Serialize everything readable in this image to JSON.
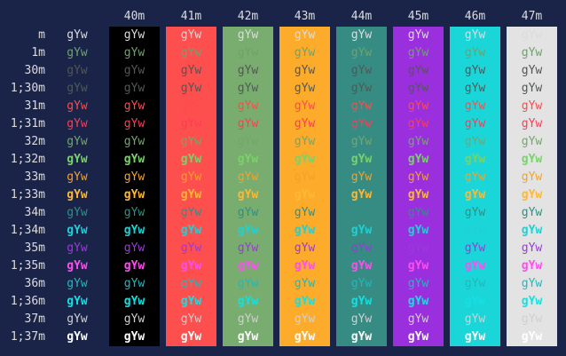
{
  "sample_text": "gYw",
  "columns": [
    {
      "label": "40m",
      "bg": "#000000"
    },
    {
      "label": "41m",
      "bg": "#fe4f4f"
    },
    {
      "label": "42m",
      "bg": "#79ad6f"
    },
    {
      "label": "43m",
      "bg": "#fdab2b"
    },
    {
      "label": "44m",
      "bg": "#368c83"
    },
    {
      "label": "45m",
      "bg": "#9a30dd"
    },
    {
      "label": "46m",
      "bg": "#1bd6d8"
    },
    {
      "label": "47m",
      "bg": "#e3e3e3"
    }
  ],
  "rows": [
    {
      "label": "m",
      "fg": "#dcdcdc",
      "bold": false
    },
    {
      "label": "1m",
      "fg": "#6ea26c",
      "bold": false
    },
    {
      "label": "30m",
      "fg": "#555555",
      "bold": false
    },
    {
      "label": "1;30m",
      "fg": "#4f5a55",
      "bold": false
    },
    {
      "label": "31m",
      "fg": "#fe4b4b",
      "bold": false
    },
    {
      "label": "1;31m",
      "fg": "#ff3b55",
      "bold": false
    },
    {
      "label": "32m",
      "fg": "#74a66c",
      "bold": false
    },
    {
      "label": "1;32m",
      "fg": "#79d26a",
      "bold": true
    },
    {
      "label": "33m",
      "fg": "#f2a22a",
      "bold": false
    },
    {
      "label": "1;33m",
      "fg": "#ffb833",
      "bold": true
    },
    {
      "label": "34m",
      "fg": "#2f8f86",
      "bold": false
    },
    {
      "label": "1;34m",
      "fg": "#1fd0d4",
      "bold": true
    },
    {
      "label": "35m",
      "fg": "#9b3ad8",
      "bold": false
    },
    {
      "label": "1;35m",
      "fg": "#ff4df0",
      "bold": true
    },
    {
      "label": "36m",
      "fg": "#21b8ba",
      "bold": false
    },
    {
      "label": "1;36m",
      "fg": "#14e0e2",
      "bold": true
    },
    {
      "label": "37m",
      "fg": "#d0d0d0",
      "bold": false
    },
    {
      "label": "1;37m",
      "fg": "#ffffff",
      "bold": true
    }
  ]
}
